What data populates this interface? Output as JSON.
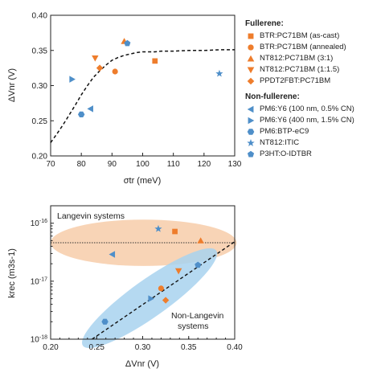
{
  "colors": {
    "fullerene": "#ee7d2c",
    "nonfullerene": "#4f8fc9",
    "langevin_fill": "#f7cfae",
    "nonlangevin_fill": "#a8d2ee",
    "fit_line": "#111111"
  },
  "legend": {
    "fullerene_title": "Fullerene:",
    "nonfullerene_title": "Non-fullerene:",
    "fullerene_items": [
      {
        "label": "BTR:PC71BM  (as-cast)",
        "marker": "square"
      },
      {
        "label": "BTR:PC71BM (annealed)",
        "marker": "circle"
      },
      {
        "label": "NT812:PC71BM (3:1)",
        "marker": "triangle-up"
      },
      {
        "label": "NT812:PC71BM (1:1.5)",
        "marker": "triangle-down"
      },
      {
        "label": "PPDT2FBT:PC71BM",
        "marker": "diamond"
      }
    ],
    "nonfullerene_items": [
      {
        "label": "PM6:Y6 (100 nm, 0.5% CN)",
        "marker": "triangle-left"
      },
      {
        "label": "PM6:Y6 (400 nm, 1.5% CN)",
        "marker": "triangle-right"
      },
      {
        "label": "PM6:BTP-eC9",
        "marker": "hexagon"
      },
      {
        "label": "NT812:ITIC",
        "marker": "star"
      },
      {
        "label": "P3HT:O-IDTBR",
        "marker": "pentagon"
      }
    ]
  },
  "chart_data": [
    {
      "type": "scatter",
      "xlabel": "σtr (meV)",
      "ylabel": "ΔVnr (V)",
      "xlim": [
        70,
        130
      ],
      "ylim": [
        0.2,
        0.4
      ],
      "xticks": [
        "70",
        "80",
        "90",
        "100",
        "110",
        "120",
        "130"
      ],
      "yticks": [
        "0.20",
        "0.25",
        "0.30",
        "0.35",
        "0.40"
      ],
      "points": [
        {
          "series": "BTR:PC71BM (as-cast)",
          "x": 104,
          "y": 0.335,
          "marker": "square",
          "group": "fullerene"
        },
        {
          "series": "BTR:PC71BM (annealed)",
          "x": 91,
          "y": 0.32,
          "marker": "circle",
          "group": "fullerene"
        },
        {
          "series": "NT812:PC71BM (3:1)",
          "x": 94,
          "y": 0.363,
          "marker": "triangle-up",
          "group": "fullerene"
        },
        {
          "series": "NT812:PC71BM (1:1.5)",
          "x": 84.5,
          "y": 0.339,
          "marker": "triangle-down",
          "group": "fullerene"
        },
        {
          "series": "PPDT2FBT:PC71BM",
          "x": 86,
          "y": 0.325,
          "marker": "diamond",
          "group": "fullerene"
        },
        {
          "series": "PM6:Y6 (100 nm, 0.5% CN)",
          "x": 83,
          "y": 0.267,
          "marker": "triangle-left",
          "group": "nonfullerene"
        },
        {
          "series": "PM6:Y6 (400 nm, 1.5% CN)",
          "x": 77,
          "y": 0.309,
          "marker": "triangle-right",
          "group": "nonfullerene"
        },
        {
          "series": "PM6:BTP-eC9",
          "x": 80,
          "y": 0.259,
          "marker": "hexagon",
          "group": "nonfullerene"
        },
        {
          "series": "NT812:ITIC",
          "x": 125,
          "y": 0.317,
          "marker": "star",
          "group": "nonfullerene"
        },
        {
          "series": "P3HT:O-IDTBR",
          "x": 95,
          "y": 0.36,
          "marker": "pentagon",
          "group": "nonfullerene"
        }
      ],
      "fit_curve": {
        "x": [
          70,
          72,
          74,
          76,
          78,
          80,
          82,
          84,
          86,
          88,
          90,
          92,
          94,
          96,
          98,
          100,
          102,
          104,
          106,
          110,
          115,
          120,
          125,
          130
        ],
        "y": [
          0.219,
          0.231,
          0.244,
          0.258,
          0.272,
          0.287,
          0.3,
          0.312,
          0.321,
          0.329,
          0.336,
          0.34,
          0.343,
          0.345,
          0.347,
          0.348,
          0.348,
          0.348,
          0.349,
          0.349,
          0.35,
          0.35,
          0.351,
          0.351
        ],
        "style": "dashed"
      }
    },
    {
      "type": "scatter",
      "xlabel": "ΔVnr (V)",
      "ylabel": "krec (m3s-1)",
      "yscale": "log",
      "xlim": [
        0.2,
        0.4
      ],
      "ylim": [
        1e-18,
        2e-16
      ],
      "xticks": [
        "0.20",
        "0.25",
        "0.30",
        "0.35",
        "0.40"
      ],
      "yticks": [
        "10-18",
        "10-17",
        "10-16"
      ],
      "annotations": [
        "Langevin systems",
        "Non-Langevin systems"
      ],
      "points": [
        {
          "series": "BTR:PC71BM (as-cast)",
          "x": 0.335,
          "y": 7.2e-17,
          "marker": "square",
          "group": "fullerene"
        },
        {
          "series": "BTR:PC71BM (annealed)",
          "x": 0.32,
          "y": 7.5e-18,
          "marker": "circle",
          "group": "fullerene"
        },
        {
          "series": "NT812:PC71BM (3:1)",
          "x": 0.363,
          "y": 5e-17,
          "marker": "triangle-up",
          "group": "fullerene"
        },
        {
          "series": "NT812:PC71BM (1:1.5)",
          "x": 0.339,
          "y": 1.5e-17,
          "marker": "triangle-down",
          "group": "fullerene"
        },
        {
          "series": "PPDT2FBT:PC71BM",
          "x": 0.325,
          "y": 4.7e-18,
          "marker": "diamond",
          "group": "fullerene"
        },
        {
          "series": "PM6:Y6 (100 nm, 0.5% CN)",
          "x": 0.267,
          "y": 2.9e-17,
          "marker": "triangle-left",
          "group": "nonfullerene"
        },
        {
          "series": "PM6:Y6 (400 nm, 1.5% CN)",
          "x": 0.309,
          "y": 5e-18,
          "marker": "triangle-right",
          "group": "nonfullerene"
        },
        {
          "series": "PM6:BTP-eC9",
          "x": 0.259,
          "y": 2e-18,
          "marker": "hexagon",
          "group": "nonfullerene"
        },
        {
          "series": "NT812:ITIC",
          "x": 0.317,
          "y": 8e-17,
          "marker": "star",
          "group": "nonfullerene"
        },
        {
          "series": "P3HT:O-IDTBR",
          "x": 0.36,
          "y": 1.9e-17,
          "marker": "pentagon",
          "group": "nonfullerene"
        }
      ],
      "reference_line": {
        "y": 4.6e-17,
        "style": "dotted"
      },
      "fit_line": {
        "x": [
          0.245,
          0.4
        ],
        "y": [
          1e-18,
          4.8e-17
        ],
        "style": "dashed"
      },
      "regions": [
        {
          "label": "Langevin systems",
          "cx": 0.301,
          "cy": 4.6e-17,
          "rx": 0.101,
          "ry_decades": 0.4,
          "angle": 0,
          "color": "#f7cfae"
        },
        {
          "label": "Non-Langevin systems",
          "x1": 0.245,
          "y1": 1e-18,
          "x2": 0.37,
          "y2": 2.6e-17,
          "width_decades": 0.32,
          "color": "#a8d2ee"
        }
      ]
    }
  ]
}
